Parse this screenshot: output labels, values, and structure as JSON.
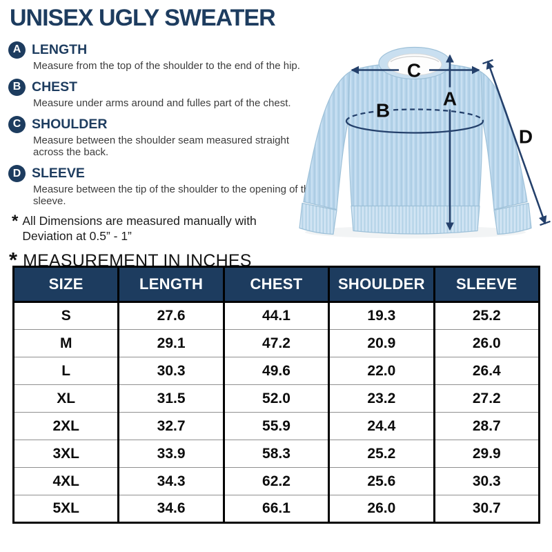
{
  "title": "UNISEX UGLY SWEATER",
  "legend": {
    "items": [
      {
        "letter": "A",
        "label": "LENGTH",
        "description": "Measure from the top of the shoulder to the end of the hip."
      },
      {
        "letter": "B",
        "label": "CHEST",
        "description": "Measure under arms around and fulles part of the chest."
      },
      {
        "letter": "C",
        "label": "SHOULDER",
        "description": "Measure between the shoulder seam measured straight across the back."
      },
      {
        "letter": "D",
        "label": "SLEEVE",
        "description": "Measure between the tip of the shoulder to the opening of the sleeve."
      }
    ]
  },
  "note": {
    "asterisk": "*",
    "line1": "All Dimensions are measured manually with",
    "line2": "Deviation at 0.5” - 1”"
  },
  "measurement_heading": {
    "asterisk": "*",
    "text": "MEASUREMENT IN INCHES"
  },
  "diagram": {
    "labels": {
      "a": "A",
      "b": "B",
      "c": "C",
      "d": "D"
    }
  },
  "table": {
    "columns": [
      "SIZE",
      "LENGTH",
      "CHEST",
      "SHOULDER",
      "SLEEVE"
    ],
    "rows": [
      [
        "S",
        "27.6",
        "44.1",
        "19.3",
        "25.2"
      ],
      [
        "M",
        "29.1",
        "47.2",
        "20.9",
        "26.0"
      ],
      [
        "L",
        "30.3",
        "49.6",
        "22.0",
        "26.4"
      ],
      [
        "XL",
        "31.5",
        "52.0",
        "23.2",
        "27.2"
      ],
      [
        "2XL",
        "32.7",
        "55.9",
        "24.4",
        "28.7"
      ],
      [
        "3XL",
        "33.9",
        "58.3",
        "25.2",
        "29.9"
      ],
      [
        "4XL",
        "34.3",
        "62.2",
        "25.6",
        "30.3"
      ],
      [
        "5XL",
        "34.6",
        "66.1",
        "26.0",
        "30.7"
      ]
    ]
  },
  "colors": {
    "navy": "#1d3c5f",
    "arrow_navy": "#24406b",
    "sweater_blue": "#b9d6ec",
    "table_header_bg": "#1d3c5f",
    "table_header_text": "#ffffff"
  }
}
